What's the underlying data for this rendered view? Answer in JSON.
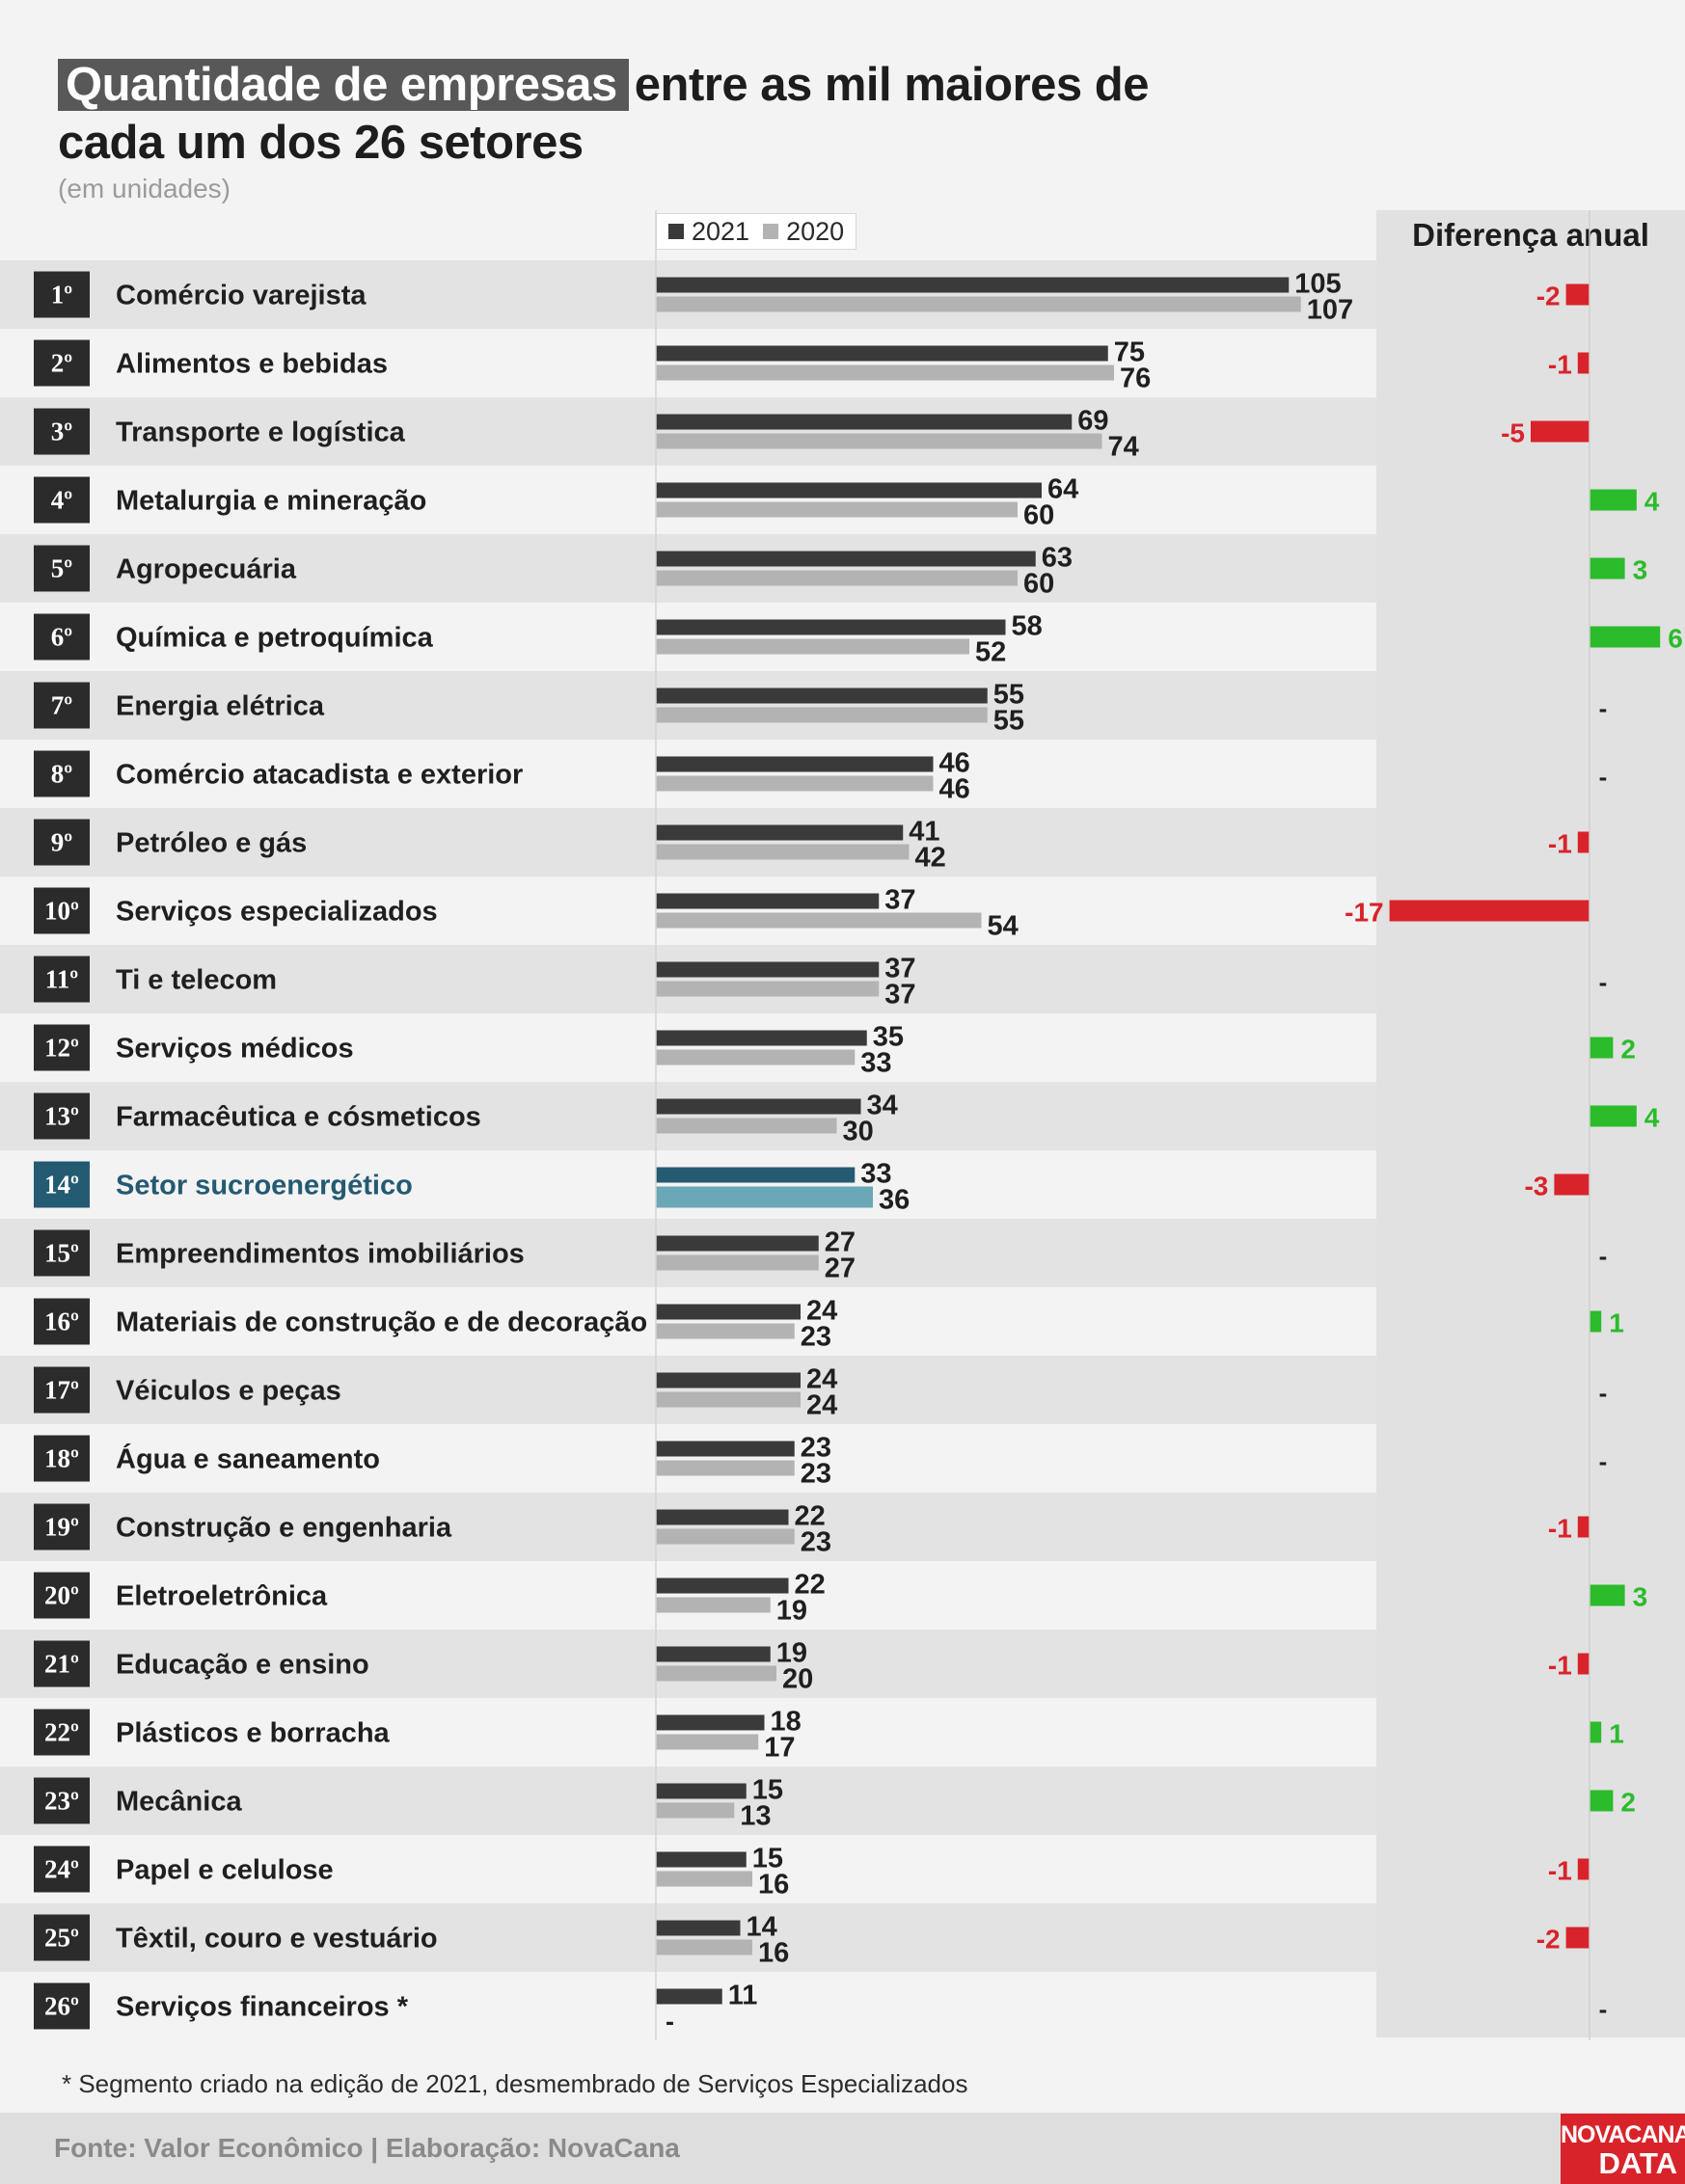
{
  "title": {
    "highlight": "Quantidade de empresas",
    "rest": "entre as mil maiores de",
    "line2": "cada um dos 26 setores",
    "subtitle": "(em unidades)"
  },
  "legend": [
    {
      "label": "2021",
      "color": "#3a3a3a"
    },
    {
      "label": "2020",
      "color": "#b3b3b3"
    }
  ],
  "diff_header": "Diferença anual",
  "colors": {
    "bar_2021": "#3a3a3a",
    "bar_2020": "#b3b3b3",
    "highlight_2021": "#245a72",
    "highlight_2020": "#6aa7b7",
    "positive": "#2bbb2b",
    "negative": "#d9232a",
    "rank_box": "#2b2b2b",
    "rank_box_highlight": "#245a72"
  },
  "chart_data": {
    "type": "bar",
    "orientation": "horizontal",
    "highlight_index": 13,
    "categories": [
      "Comércio varejista",
      "Alimentos e bebidas",
      "Transporte e logística",
      "Metalurgia e mineração",
      "Agropecuária",
      "Química e petroquímica",
      "Energia elétrica",
      "Comércio atacadista e exterior",
      "Petróleo e gás",
      "Serviços especializados",
      "Ti e telecom",
      "Serviços médicos",
      "Farmacêutica e cósmeticos",
      "Setor sucroenergético",
      "Empreendimentos imobiliários",
      "Materiais de construção e de decoração",
      "Véiculos e peças",
      "Água e saneamento",
      "Construção e engenharia",
      "Eletroeletrônica",
      "Educação e ensino",
      "Plásticos e borracha",
      "Mecânica",
      "Papel e celulose",
      "Têxtil, couro e vestuário",
      "Serviços financeiros *"
    ],
    "ranks": [
      "1º",
      "2º",
      "3º",
      "4º",
      "5º",
      "6º",
      "7º",
      "8º",
      "9º",
      "10º",
      "11º",
      "12º",
      "13º",
      "14º",
      "15º",
      "16º",
      "17º",
      "18º",
      "19º",
      "20º",
      "21º",
      "22º",
      "23º",
      "24º",
      "25º",
      "26º"
    ],
    "series": [
      {
        "name": "2021",
        "values": [
          105,
          75,
          69,
          64,
          63,
          58,
          55,
          46,
          41,
          37,
          37,
          35,
          34,
          33,
          27,
          24,
          24,
          23,
          22,
          22,
          19,
          18,
          15,
          15,
          14,
          11
        ]
      },
      {
        "name": "2020",
        "values": [
          107,
          76,
          74,
          60,
          60,
          52,
          55,
          46,
          42,
          54,
          37,
          33,
          30,
          36,
          27,
          23,
          24,
          23,
          23,
          19,
          20,
          17,
          13,
          16,
          16,
          null
        ]
      }
    ],
    "missing_label": "-",
    "difference": {
      "title": "Diferença anual",
      "values": [
        -2,
        -1,
        -5,
        4,
        3,
        6,
        0,
        0,
        -1,
        -17,
        0,
        2,
        4,
        -3,
        0,
        1,
        0,
        0,
        -1,
        3,
        -1,
        1,
        2,
        -1,
        -2,
        null
      ],
      "labels": [
        "-2",
        "-1",
        "-5",
        "4",
        "3",
        "6",
        "-",
        "-",
        "-1",
        "-17",
        "-",
        "2",
        "4",
        "-3",
        "-",
        "1",
        "-",
        "-",
        "-1",
        "3",
        "-1",
        "1",
        "2",
        "-1",
        "-2",
        "-"
      ]
    }
  },
  "footnote": "* Segmento criado na edição de 2021, desmembrado de Serviços Especializados",
  "source": "Fonte: Valor Econômico | Elaboração: NovaCana",
  "logo": {
    "line1": "NOVACANA",
    "line2": "DATA"
  }
}
